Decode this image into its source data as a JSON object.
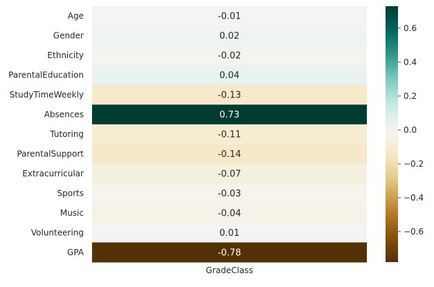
{
  "chart_data": {
    "type": "heatmap",
    "title": "",
    "xlabel": "",
    "ylabel": "",
    "columns": [
      "GradeClass"
    ],
    "rows": [
      "Age",
      "Gender",
      "Ethnicity",
      "ParentalEducation",
      "StudyTimeWeekly",
      "Absences",
      "Tutoring",
      "ParentalSupport",
      "Extracurricular",
      "Sports",
      "Music",
      "Volunteering",
      "GPA"
    ],
    "values": [
      -0.01,
      0.02,
      -0.02,
      0.04,
      -0.13,
      0.73,
      -0.11,
      -0.14,
      -0.07,
      -0.03,
      -0.04,
      0.01,
      -0.78
    ],
    "annotations": [
      "-0.01",
      "0.02",
      "-0.02",
      "0.04",
      "-0.13",
      "0.73",
      "-0.11",
      "-0.14",
      "-0.07",
      "-0.03",
      "-0.04",
      "0.01",
      "-0.78"
    ],
    "colormap": "BrBG",
    "vmin": -0.78,
    "vmax": 0.73,
    "colorbar": {
      "ticks": [
        0.6,
        0.4,
        0.2,
        0.0,
        -0.2,
        -0.4,
        -0.6
      ],
      "tick_labels": [
        "0.6",
        "0.4",
        "0.2",
        "0.0",
        "−0.2",
        "−0.4",
        "−0.6"
      ]
    },
    "grid": false,
    "legend": "colorbar-right"
  }
}
